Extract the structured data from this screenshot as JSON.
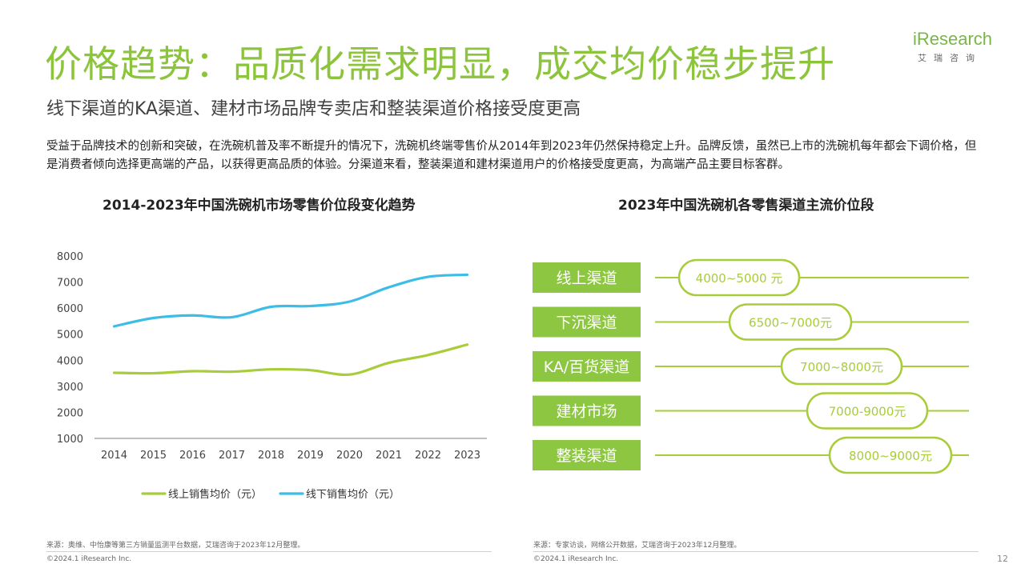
{
  "header": {
    "title": "价格趋势：品质化需求明显，成交均价稳步提升",
    "subtitle": "线下渠道的KA渠道、建材市场品牌专卖店和整装渠道价格接受度更高",
    "logo_main": "Research",
    "logo_i": "i",
    "logo_sub": "艾瑞咨询"
  },
  "description": "受益于品牌技术的创新和突破，在洗碗机普及率不断提升的情况下，洗碗机终端零售价从2014年到2023年仍然保持稳定上升。品牌反馈，虽然已上市的洗碗机每年都会下调价格，但是消费者倾向选择更高端的产品，以获得更高品质的体验。分渠道来看，整装渠道和建材渠道用户的价格接受度更高，为高端产品主要目标客群。",
  "colors": {
    "accent": "#8cc43c",
    "online": "#a8cc3a",
    "offline": "#3dbde6",
    "button": "#8dc641"
  },
  "chart_data": [
    {
      "type": "line",
      "title": "2014-2023年中国洗碗机市场零售价位段变化趋势",
      "categories": [
        "2014",
        "2015",
        "2016",
        "2017",
        "2018",
        "2019",
        "2020",
        "2021",
        "2022",
        "2023"
      ],
      "ylim": [
        1000,
        8000
      ],
      "yticks": [
        "1000",
        "2000",
        "3000",
        "4000",
        "5000",
        "6000",
        "7000",
        "8000"
      ],
      "series": [
        {
          "name": "线上销售均价（元）",
          "color": "#a8cc3a",
          "values": [
            3520,
            3500,
            3580,
            3560,
            3650,
            3620,
            3450,
            3900,
            4200,
            4600
          ]
        },
        {
          "name": "线下销售均价（元）",
          "color": "#3dbde6",
          "values": [
            5300,
            5620,
            5720,
            5650,
            6050,
            6080,
            6250,
            6800,
            7200,
            7280
          ]
        }
      ],
      "legend_position": "bottom",
      "grid": false
    },
    {
      "type": "table",
      "title": "2023年中国洗碗机各零售渠道主流价位段",
      "rows": [
        {
          "channel": "线上渠道",
          "range": "4000~5000 元"
        },
        {
          "channel": "下沉渠道",
          "range": "6500~7000元"
        },
        {
          "channel": "KA/百货渠道",
          "range": "7000~8000元"
        },
        {
          "channel": "建材市场",
          "range": "7000-9000元"
        },
        {
          "channel": "整装渠道",
          "range": "8000~9000元"
        }
      ]
    }
  ],
  "footer": {
    "source_left": "来源：奥维、中怡康等第三方销量监测平台数据，艾瑞咨询于2023年12月整理。",
    "source_right": "来源：专家访谈，网络公开数据，艾瑞咨询于2023年12月整理。",
    "copyright": "©2024.1 iResearch Inc.",
    "page": "12"
  }
}
